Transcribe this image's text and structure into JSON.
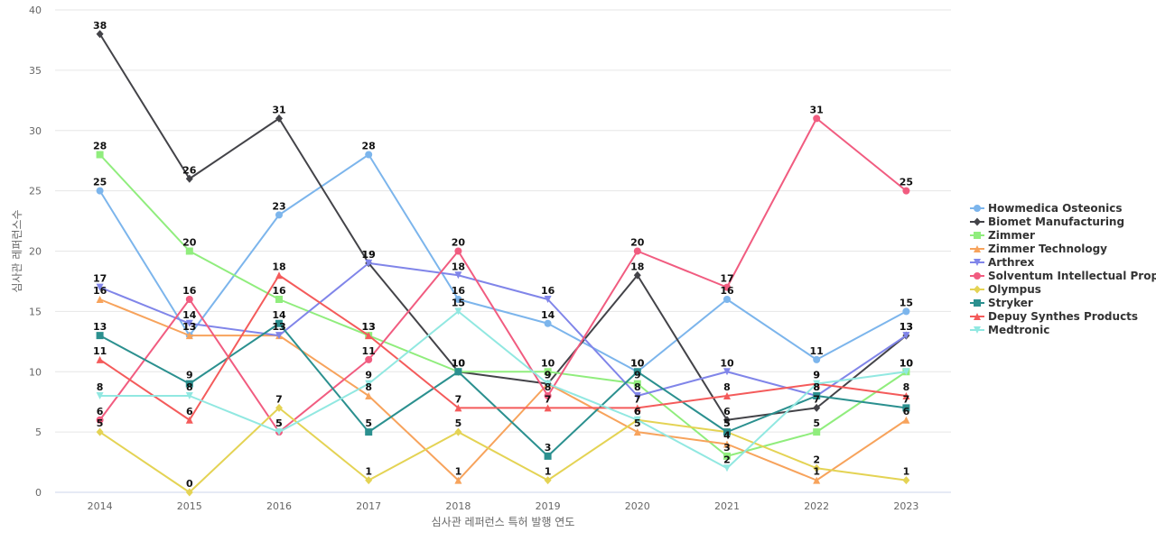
{
  "chart_data": {
    "type": "line",
    "title": "",
    "xlabel": "심사관 레퍼런스 특허 발행 연도",
    "ylabel": "심사관 레퍼런스수",
    "ylim": [
      0,
      40
    ],
    "yticks": [
      0,
      5,
      10,
      15,
      20,
      25,
      30,
      35,
      40
    ],
    "grid": true,
    "legend": "right",
    "categories": [
      "2014",
      "2015",
      "2016",
      "2017",
      "2018",
      "2019",
      "2020",
      "2021",
      "2022",
      "2023"
    ],
    "series": [
      {
        "name": "Howmedica Osteonics",
        "color": "#7cb5ec",
        "marker": "circle",
        "values": [
          25,
          13,
          23,
          28,
          16,
          14,
          10,
          16,
          11,
          15
        ]
      },
      {
        "name": "Biomet Manufacturing",
        "color": "#434348",
        "marker": "diamond",
        "values": [
          38,
          26,
          31,
          19,
          10,
          9,
          18,
          6,
          7,
          13
        ]
      },
      {
        "name": "Zimmer",
        "color": "#90ed7d",
        "marker": "square",
        "values": [
          28,
          20,
          16,
          13,
          10,
          10,
          9,
          3,
          5,
          10
        ]
      },
      {
        "name": "Zimmer Technology",
        "color": "#f7a35c",
        "marker": "triangle",
        "values": [
          16,
          13,
          13,
          8,
          1,
          9,
          5,
          4,
          1,
          6
        ]
      },
      {
        "name": "Arthrex",
        "color": "#8085e9",
        "marker": "triangle-down",
        "values": [
          17,
          14,
          13,
          19,
          18,
          16,
          8,
          10,
          8,
          13
        ]
      },
      {
        "name": "Solventum Intellectual Prop...",
        "color": "#f15c80",
        "marker": "circle",
        "values": [
          6,
          16,
          5,
          11,
          20,
          8,
          20,
          17,
          31,
          25
        ]
      },
      {
        "name": "Olympus",
        "color": "#e4d354",
        "marker": "diamond",
        "values": [
          5,
          0,
          7,
          1,
          5,
          1,
          6,
          5,
          2,
          1
        ]
      },
      {
        "name": "Stryker",
        "color": "#2b908f",
        "marker": "square",
        "values": [
          13,
          9,
          14,
          5,
          10,
          3,
          10,
          5,
          8,
          7
        ]
      },
      {
        "name": "Depuy Synthes Products",
        "color": "#f45b5b",
        "marker": "triangle",
        "values": [
          11,
          6,
          18,
          13,
          7,
          7,
          7,
          8,
          9,
          8
        ]
      },
      {
        "name": "Medtronic",
        "color": "#91e8e1",
        "marker": "triangle-down",
        "values": [
          8,
          8,
          5,
          9,
          15,
          9,
          6,
          2,
          9,
          10
        ]
      }
    ]
  }
}
